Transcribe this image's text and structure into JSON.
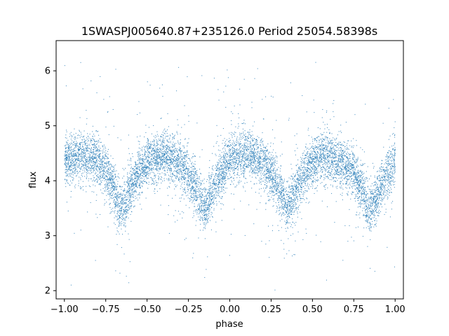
{
  "chart_data": {
    "type": "scatter",
    "title": "1SWASPJ005640.87+235126.0 Period 25054.58398s",
    "xlabel": "phase",
    "ylabel": "flux",
    "xlim": [
      -1.05,
      1.05
    ],
    "ylim": [
      1.85,
      6.55
    ],
    "xticks": [
      -1.0,
      -0.75,
      -0.5,
      -0.25,
      0.0,
      0.25,
      0.5,
      0.75,
      1.0
    ],
    "xtick_labels": [
      "−1.00",
      "−0.75",
      "−0.50",
      "−0.25",
      "0.00",
      "0.25",
      "0.50",
      "0.75",
      "1.00"
    ],
    "yticks": [
      2,
      3,
      4,
      5,
      6
    ],
    "ytick_labels": [
      "2",
      "3",
      "4",
      "5",
      "6"
    ],
    "grid": false,
    "marker_color": "#1f77b4",
    "series": [
      {
        "description_of_shape": "phase-folded light curve, dense band",
        "trend": {
          "x": [
            -1.0,
            -0.9,
            -0.8,
            -0.75,
            -0.7,
            -0.65,
            -0.6,
            -0.5,
            -0.4,
            -0.3,
            -0.25,
            -0.2,
            -0.15,
            -0.1,
            0.0,
            0.1,
            0.2,
            0.25,
            0.3,
            0.35,
            0.4,
            0.5,
            0.6,
            0.7,
            0.75,
            0.8,
            0.85,
            0.9,
            1.0
          ],
          "y": [
            4.35,
            4.45,
            4.4,
            4.2,
            3.85,
            3.45,
            3.9,
            4.35,
            4.45,
            4.3,
            4.1,
            3.8,
            3.45,
            3.85,
            4.4,
            4.5,
            4.35,
            4.15,
            3.85,
            3.45,
            3.85,
            4.35,
            4.45,
            4.3,
            4.15,
            3.85,
            3.45,
            3.8,
            4.35
          ]
        },
        "scatter_spread": 0.22,
        "outlier_range": [
          2.0,
          6.3
        ]
      }
    ]
  }
}
